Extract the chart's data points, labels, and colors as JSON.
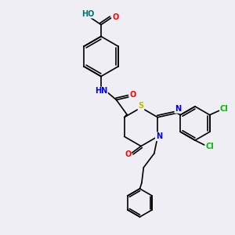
{
  "bg_color": "#eeeef4",
  "bond_color": "#000000",
  "atom_colors": {
    "O": "#ff0000",
    "N": "#0000ee",
    "S": "#bbbb00",
    "Cl": "#00bb00",
    "H": "#007070",
    "C": "#000000"
  },
  "font_size": 7.0,
  "lw": 1.2
}
